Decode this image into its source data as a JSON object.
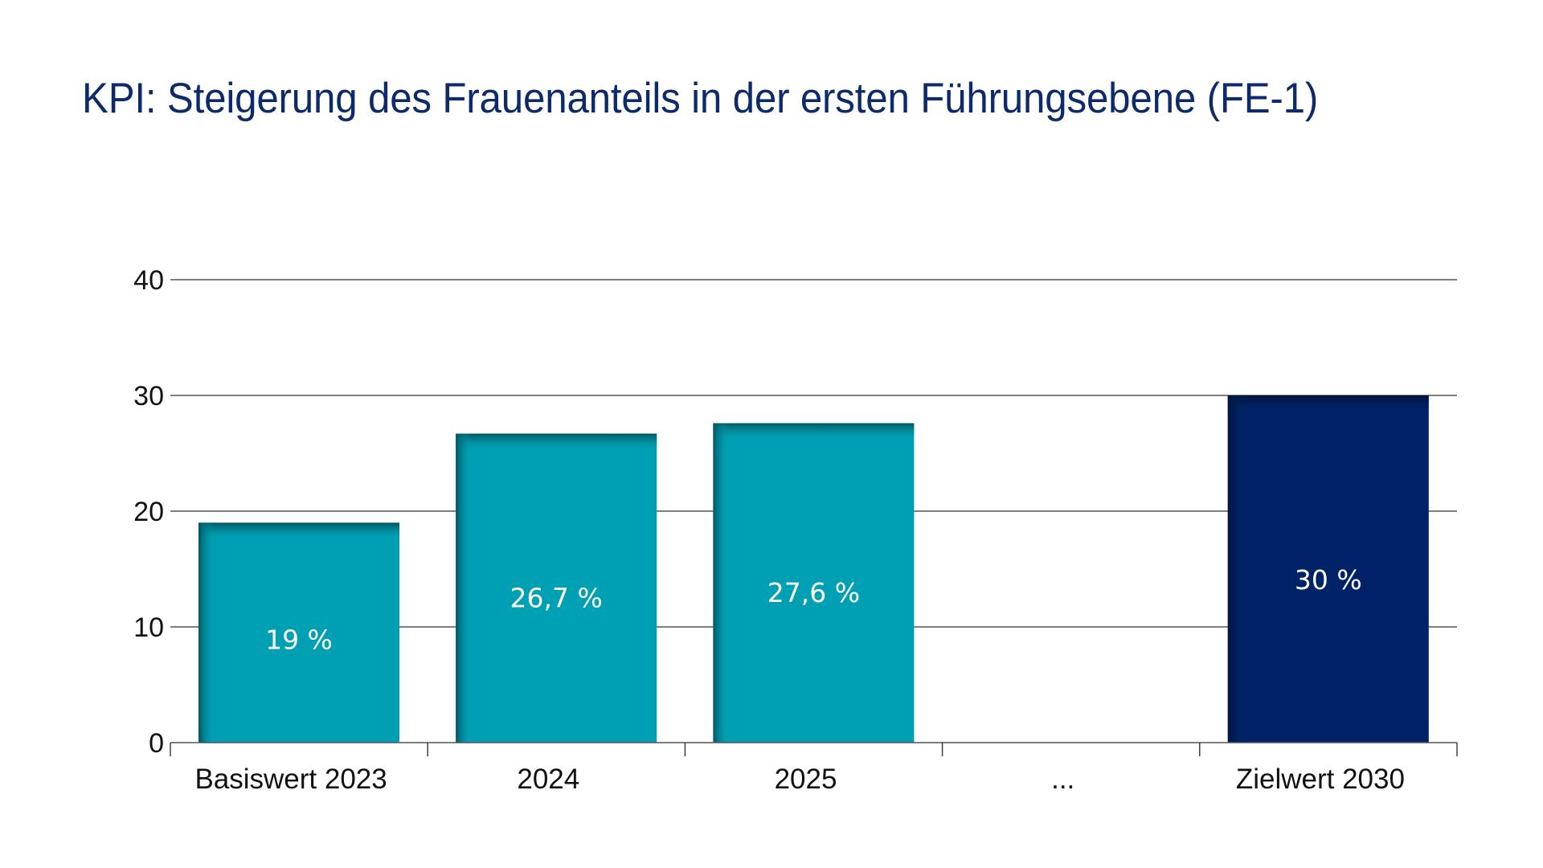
{
  "title": "KPI: Steigerung des Frauenanteils in der ersten Führungsebene (FE-1)",
  "colors": {
    "title": "#0d2a6b",
    "actual_bar": "#00a0b4",
    "actual_bar_shade": "#005560",
    "target_bar": "#002266",
    "target_bar_shade": "#00143d",
    "gridline": "#555555",
    "axis_text": "#111111",
    "data_label": "#ffffff"
  },
  "chart_data": {
    "type": "bar",
    "title": "KPI: Steigerung des Frauenanteils in der ersten Führungsebene (FE-1)",
    "xlabel": "",
    "ylabel": "",
    "categories": [
      "Basiswert 2023",
      "2024",
      "2025",
      "...",
      "Zielwert 2030"
    ],
    "values": [
      19,
      26.7,
      27.6,
      null,
      30
    ],
    "data_labels": [
      "19 %",
      "26,7 %",
      "27,6 %",
      "",
      "30 %"
    ],
    "bar_kinds": [
      "actual",
      "actual",
      "actual",
      "none",
      "target"
    ],
    "ylim": [
      0,
      40
    ],
    "yticks": [
      0,
      10,
      20,
      30,
      40
    ],
    "ytick_labels": [
      "0",
      "10",
      "20",
      "30",
      "40"
    ],
    "grid": true,
    "legend": "none"
  }
}
